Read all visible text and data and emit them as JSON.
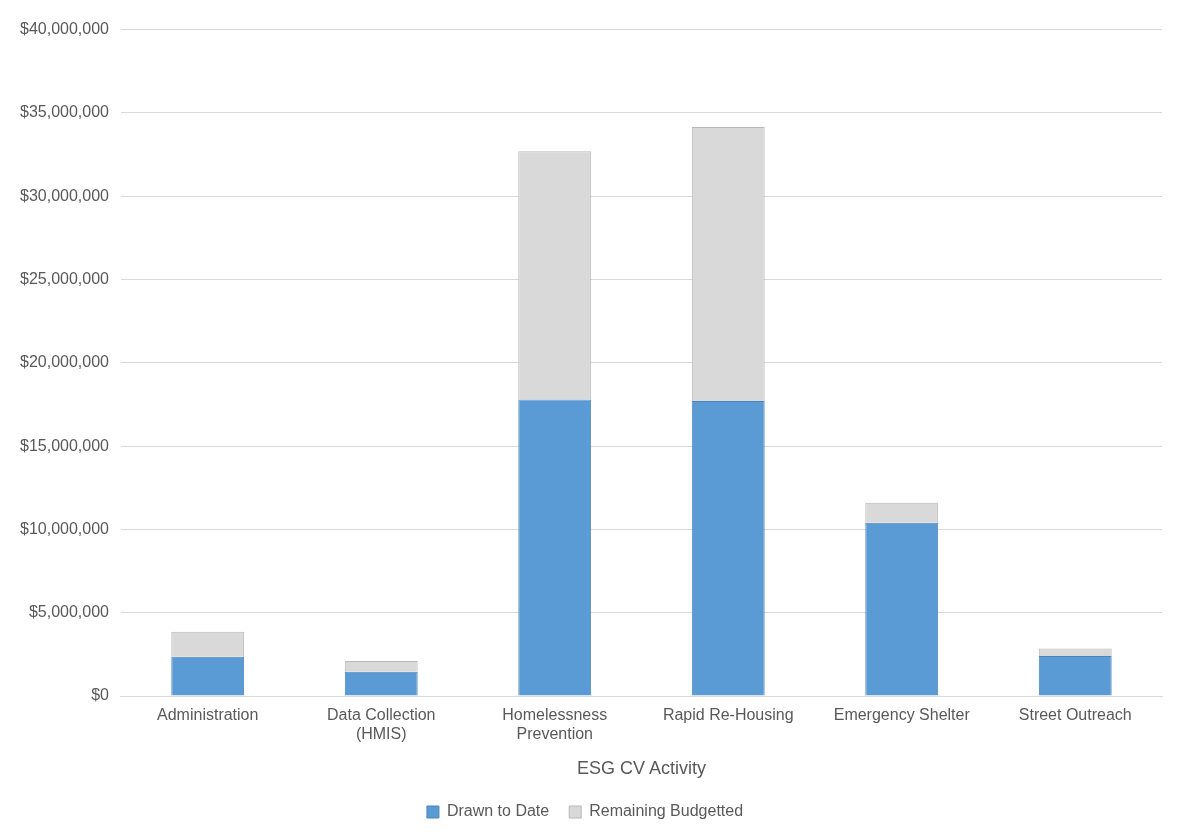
{
  "chart_data": {
    "type": "bar",
    "xlabel": "ESG CV Activity",
    "categories": [
      "Administration",
      "Data Collection (HMIS)",
      "Homelessness Prevention",
      "Rapid Re-Housing",
      "Emergency Shelter",
      "Street Outreach"
    ],
    "series": [
      {
        "name": "Drawn to Date",
        "color": "#5b9bd5",
        "values": [
          2350000,
          1450000,
          17800000,
          17700000,
          10400000,
          2400000
        ]
      },
      {
        "name": "Remaining Budgetted",
        "color": "#d9d9d9",
        "values": [
          1500000,
          650000,
          14900000,
          16450000,
          1200000,
          450000
        ]
      }
    ],
    "stacked": true,
    "ylim": [
      0,
      40000000
    ],
    "yticks": [
      {
        "value": 0,
        "label": "$0"
      },
      {
        "value": 5000000,
        "label": "$5,000,000"
      },
      {
        "value": 10000000,
        "label": "$10,000,000"
      },
      {
        "value": 15000000,
        "label": "$15,000,000"
      },
      {
        "value": 20000000,
        "label": "$20,000,000"
      },
      {
        "value": 25000000,
        "label": "$25,000,000"
      },
      {
        "value": 30000000,
        "label": "$30,000,000"
      },
      {
        "value": 35000000,
        "label": "$35,000,000"
      },
      {
        "value": 40000000,
        "label": "$40,000,000"
      }
    ],
    "grid": "y",
    "legend": "bottom"
  }
}
